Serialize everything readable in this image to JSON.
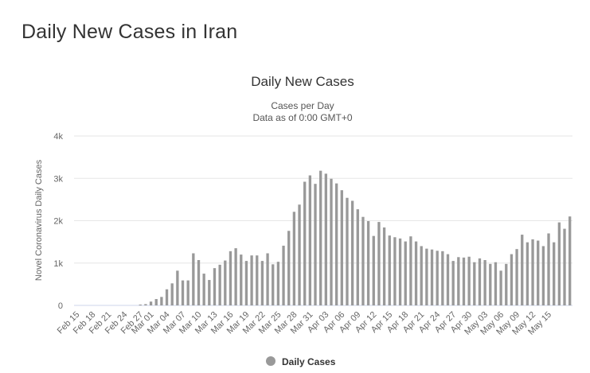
{
  "page": {
    "title": "Daily New Cases in Iran"
  },
  "chart_data": {
    "type": "bar",
    "title": "Daily New Cases",
    "subtitle_line1": "Cases per Day",
    "subtitle_line2": "Data as of 0:00 GMT+0",
    "ylabel": "Novel Coronavirus Daily Cases",
    "xlabel": "",
    "ylim": [
      0,
      4000
    ],
    "yticks": [
      {
        "value": 0,
        "label": "0"
      },
      {
        "value": 1000,
        "label": "1k"
      },
      {
        "value": 2000,
        "label": "2k"
      },
      {
        "value": 3000,
        "label": "3k"
      },
      {
        "value": 4000,
        "label": "4k"
      }
    ],
    "tick_labels": [
      {
        "index": 0,
        "label": "Feb 15"
      },
      {
        "index": 3,
        "label": "Feb 18"
      },
      {
        "index": 6,
        "label": "Feb 21"
      },
      {
        "index": 9,
        "label": "Feb 24"
      },
      {
        "index": 12,
        "label": "Feb 27"
      },
      {
        "index": 14,
        "label": "Mar 01"
      },
      {
        "index": 17,
        "label": "Mar 04"
      },
      {
        "index": 20,
        "label": "Mar 07"
      },
      {
        "index": 23,
        "label": "Mar 10"
      },
      {
        "index": 26,
        "label": "Mar 13"
      },
      {
        "index": 29,
        "label": "Mar 16"
      },
      {
        "index": 32,
        "label": "Mar 19"
      },
      {
        "index": 35,
        "label": "Mar 22"
      },
      {
        "index": 38,
        "label": "Mar 25"
      },
      {
        "index": 41,
        "label": "Mar 28"
      },
      {
        "index": 44,
        "label": "Mar 31"
      },
      {
        "index": 47,
        "label": "Apr 03"
      },
      {
        "index": 50,
        "label": "Apr 06"
      },
      {
        "index": 53,
        "label": "Apr 09"
      },
      {
        "index": 56,
        "label": "Apr 12"
      },
      {
        "index": 59,
        "label": "Apr 15"
      },
      {
        "index": 62,
        "label": "Apr 18"
      },
      {
        "index": 65,
        "label": "Apr 21"
      },
      {
        "index": 68,
        "label": "Apr 24"
      },
      {
        "index": 71,
        "label": "Apr 27"
      },
      {
        "index": 74,
        "label": "Apr 30"
      },
      {
        "index": 77,
        "label": "May 03"
      },
      {
        "index": 80,
        "label": "May 06"
      },
      {
        "index": 83,
        "label": "May 09"
      },
      {
        "index": 86,
        "label": "May 12"
      },
      {
        "index": 89,
        "label": "May 15"
      }
    ],
    "series": [
      {
        "name": "Daily Cases",
        "color": "#999999",
        "values": [
          0,
          0,
          0,
          0,
          0,
          0,
          0,
          0,
          0,
          0,
          0,
          0,
          20,
          30,
          90,
          150,
          200,
          380,
          520,
          820,
          590,
          590,
          1230,
          1070,
          750,
          600,
          880,
          960,
          1060,
          1280,
          1350,
          1200,
          1050,
          1180,
          1180,
          1050,
          1230,
          970,
          1030,
          1410,
          1760,
          2210,
          2380,
          2920,
          3070,
          2870,
          3180,
          3110,
          2990,
          2880,
          2720,
          2540,
          2470,
          2270,
          2090,
          1990,
          1640,
          1970,
          1840,
          1650,
          1610,
          1580,
          1510,
          1630,
          1510,
          1400,
          1340,
          1320,
          1290,
          1280,
          1210,
          1050,
          1140,
          1130,
          1150,
          1020,
          1110,
          1070,
          980,
          1020,
          820,
          980,
          1210,
          1330,
          1670,
          1490,
          1560,
          1530,
          1400,
          1700,
          1490,
          1960,
          1810,
          2100
        ]
      }
    ],
    "legend": {
      "label": "Daily Cases",
      "position": "bottom-center"
    }
  }
}
